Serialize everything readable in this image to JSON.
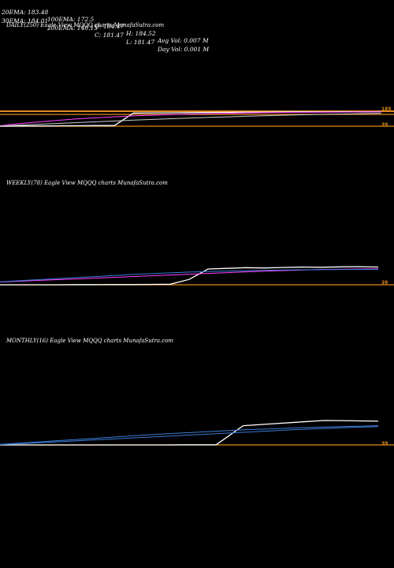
{
  "header": {
    "row1": [
      "20EMA: 183.48",
      "100EMA: 172.5",
      "O: 184.47",
      "H: 184.52",
      "Avg Vol: 0.007 M"
    ],
    "row2": [
      "30EMA: 184.01",
      "200EMA: 140.13",
      "C: 181.47",
      "L: 181.47",
      "Day Vol: 0.001 M"
    ]
  },
  "colors": {
    "background": "#000000",
    "price": "#ffffff",
    "ema_blue": "#3a7bd5",
    "ema_magenta": "#ff40ff",
    "support_orange": "#e08a1e",
    "ema_short": "#cccccc"
  },
  "chart_data": [
    {
      "type": "line",
      "title": "DAILY(250) Eagle  View  MQQQ charts MunafaSutra.com",
      "right_ticks": [
        "185",
        "39"
      ],
      "series": [
        {
          "values": [
            39,
            40,
            41,
            42,
            43,
            44,
            44,
            150,
            151,
            152,
            153,
            155,
            156,
            158,
            158,
            159,
            160,
            159,
            161,
            160,
            162
          ]
        },
        {
          "values": [
            43,
            60,
            75,
            88,
            100,
            110,
            118,
            126,
            132,
            137,
            141,
            145,
            148,
            151,
            153,
            155,
            156,
            157,
            158,
            159,
            160
          ]
        },
        {
          "values": [
            40,
            48,
            55,
            62,
            69,
            76,
            83,
            90,
            96,
            102,
            108,
            113,
            118,
            123,
            128,
            132,
            136,
            139,
            142,
            145,
            148
          ]
        }
      ],
      "levels": [
        185,
        181,
        39
      ]
    },
    {
      "type": "line",
      "title": "WEEKLY(78) Eagle  View  MQQQ charts MunafaSutra.com",
      "right_ticks": [
        "39"
      ],
      "series": [
        {
          "values": [
            39,
            39,
            39,
            39,
            40,
            40,
            41,
            41,
            42,
            43,
            80,
            160,
            165,
            170,
            168,
            172,
            175,
            173,
            176,
            178,
            175
          ]
        },
        {
          "values": [
            60,
            66,
            72,
            78,
            84,
            90,
            96,
            102,
            108,
            114,
            120,
            126,
            132,
            138,
            143,
            148,
            152,
            156,
            158,
            160,
            161
          ]
        },
        {
          "values": [
            62,
            70,
            78,
            86,
            94,
            102,
            110,
            118,
            124,
            130,
            136,
            140,
            144,
            147,
            150,
            152,
            154,
            155,
            156,
            157,
            157
          ]
        }
      ],
      "levels": [
        39
      ]
    },
    {
      "type": "line",
      "title": "MONTHLY(16) Eagle  View  MQQQ charts MunafaSutra.com",
      "right_ticks": [
        "39"
      ],
      "series": [
        {
          "values": [
            39,
            39,
            39,
            39,
            39,
            39,
            39,
            40,
            40,
            150,
            160,
            170,
            180,
            178,
            176
          ]
        },
        {
          "values": [
            40,
            48,
            56,
            64,
            72,
            80,
            88,
            96,
            104,
            112,
            120,
            128,
            134,
            140,
            145
          ]
        },
        {
          "values": [
            42,
            52,
            62,
            72,
            82,
            92,
            102,
            110,
            118,
            126,
            132,
            138,
            142,
            146,
            150
          ]
        }
      ],
      "levels": [
        39
      ]
    }
  ]
}
